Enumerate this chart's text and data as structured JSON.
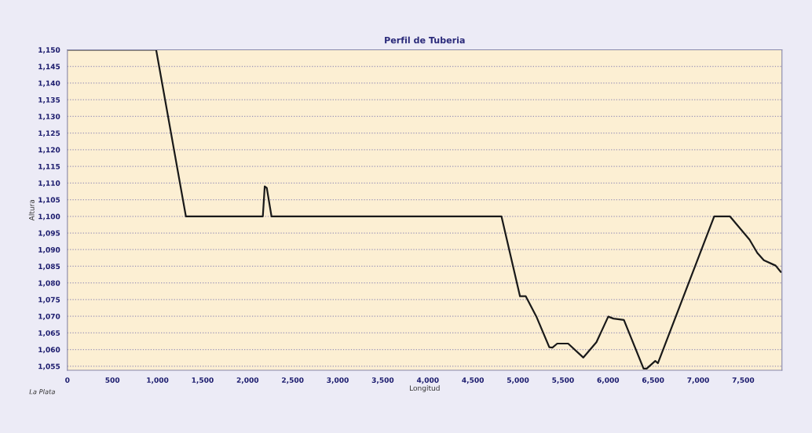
{
  "chart_data": {
    "type": "line",
    "title": "Perfil de Tuberia",
    "xlabel": "Longitud",
    "ylabel": "Altura",
    "annotations": [
      "La Plata"
    ],
    "x": [
      0,
      985,
      1315,
      2169,
      2190,
      2213,
      2265,
      4817,
      5023,
      5087,
      5203,
      5348,
      5383,
      5436,
      5557,
      5726,
      5871,
      6002,
      6060,
      6176,
      6394,
      6429,
      6524,
      6553,
      7178,
      7352,
      7570,
      7657,
      7729,
      7860,
      7918
    ],
    "series": [
      {
        "color": "#1a1a1a",
        "values": [
          1150,
          1150,
          1100,
          1100,
          1109,
          1108.5,
          1100,
          1100,
          1076,
          1076,
          1070,
          1060.7,
          1060.6,
          1061.8,
          1061.8,
          1057.6,
          1062.2,
          1069.9,
          1069.3,
          1068.9,
          1054.3,
          1054.3,
          1056.6,
          1055.9,
          1100,
          1100,
          1093,
          1089,
          1086.8,
          1085.2,
          1083.3
        ]
      }
    ],
    "xlim": [
      0,
      7930
    ],
    "ylim": [
      1053.8,
      1150
    ],
    "xticks": [
      0,
      500,
      {
        "value": 1000,
        "label": "1,000"
      },
      {
        "value": 1500,
        "label": "1,500"
      },
      {
        "value": 2000,
        "label": "2,000"
      },
      {
        "value": 2500,
        "label": "2,500"
      },
      {
        "value": 3000,
        "label": "3,000"
      },
      {
        "value": 3500,
        "label": "3,500"
      },
      {
        "value": 4000,
        "label": "4,000"
      },
      {
        "value": 4500,
        "label": "4,500"
      },
      {
        "value": 5000,
        "label": "5,000"
      },
      {
        "value": 5500,
        "label": "5,500"
      },
      {
        "value": 6000,
        "label": "6,000"
      },
      {
        "value": 6500,
        "label": "6,500"
      },
      {
        "value": 7000,
        "label": "7,000"
      },
      {
        "value": 7500,
        "label": "7,500"
      }
    ],
    "yticks": [
      {
        "value": 1055,
        "label": "1,055"
      },
      {
        "value": 1060,
        "label": "1,060"
      },
      {
        "value": 1065,
        "label": "1,065"
      },
      {
        "value": 1070,
        "label": "1,070"
      },
      {
        "value": 1075,
        "label": "1,075"
      },
      {
        "value": 1080,
        "label": "1,080"
      },
      {
        "value": 1085,
        "label": "1,085"
      },
      {
        "value": 1090,
        "label": "1,090"
      },
      {
        "value": 1095,
        "label": "1,095"
      },
      {
        "value": 1100,
        "label": "1,100"
      },
      {
        "value": 1105,
        "label": "1,105"
      },
      {
        "value": 1110,
        "label": "1,110"
      },
      {
        "value": 1115,
        "label": "1,115"
      },
      {
        "value": 1120,
        "label": "1,120"
      },
      {
        "value": 1125,
        "label": "1,125"
      },
      {
        "value": 1130,
        "label": "1,130"
      },
      {
        "value": 1135,
        "label": "1,135"
      },
      {
        "value": 1140,
        "label": "1,140"
      },
      {
        "value": 1145,
        "label": "1,145"
      },
      {
        "value": 1150,
        "label": "1,150"
      }
    ],
    "grid": "y",
    "marker": "none",
    "line_style": "solid"
  }
}
